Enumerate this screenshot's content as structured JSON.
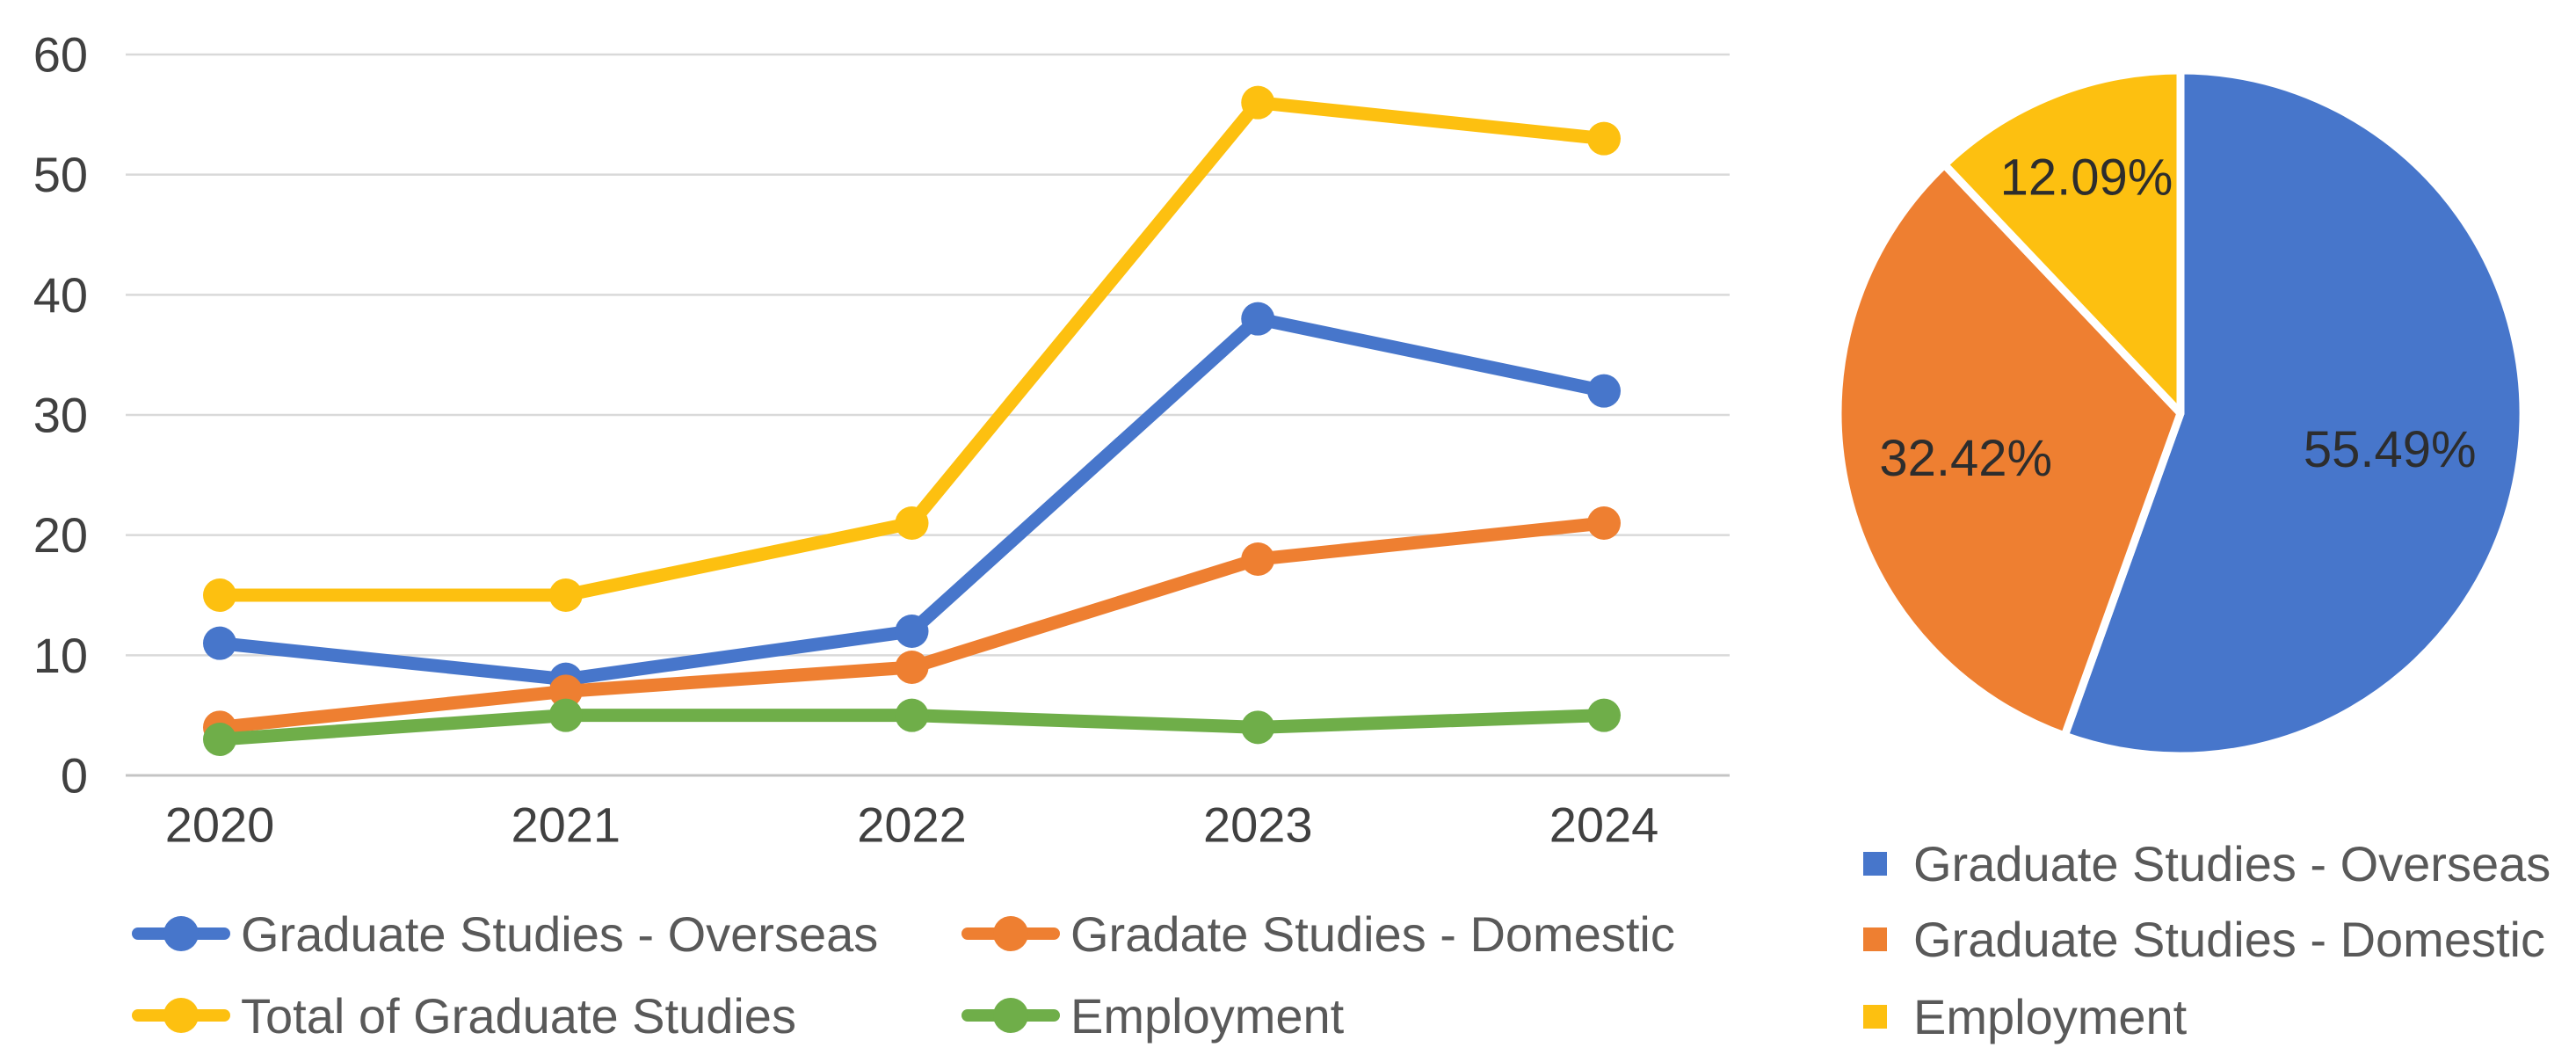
{
  "chart_data": [
    {
      "type": "line",
      "title": "",
      "categories": [
        "2020",
        "2021",
        "2022",
        "2023",
        "2024"
      ],
      "series": [
        {
          "name": "Graduate Studies - Overseas",
          "color": "#4776CB",
          "values": [
            11,
            8,
            12,
            38,
            32
          ]
        },
        {
          "name": "Gradate Studies - Domestic",
          "color": "#EE7F31",
          "values": [
            4,
            7,
            9,
            18,
            21
          ]
        },
        {
          "name": "Total of Graduate Studies",
          "color": "#FDC010",
          "values": [
            15,
            15,
            21,
            56,
            53
          ]
        },
        {
          "name": "Employment",
          "color": "#6FAE49",
          "values": [
            3,
            5,
            5,
            4,
            5
          ]
        }
      ],
      "ylim": [
        0,
        60
      ],
      "ytick_step": 10,
      "ytick_labels": [
        "0",
        "10",
        "20",
        "30",
        "40",
        "50",
        "60"
      ],
      "grid": true,
      "gridline_color": "#d9d9d9",
      "baseline_color": "#c4c4c4",
      "legend_position": "bottom",
      "legend_columns": 2
    },
    {
      "type": "pie",
      "title": "",
      "slices": [
        {
          "label": "Graduate Studies - Overseas",
          "value": 55.49,
          "display": "55.49%",
          "color": "#4776CB"
        },
        {
          "label": "Graduate Studies - Domestic",
          "value": 32.42,
          "display": "32.42%",
          "color": "#EE7F31"
        },
        {
          "label": "Employment",
          "value": 12.09,
          "display": "12.09%",
          "color": "#FDC010"
        }
      ],
      "start_angle_deg": 0,
      "direction": "clockwise",
      "slice_border_color": "#ffffff",
      "legend_position": "bottom-right"
    }
  ]
}
